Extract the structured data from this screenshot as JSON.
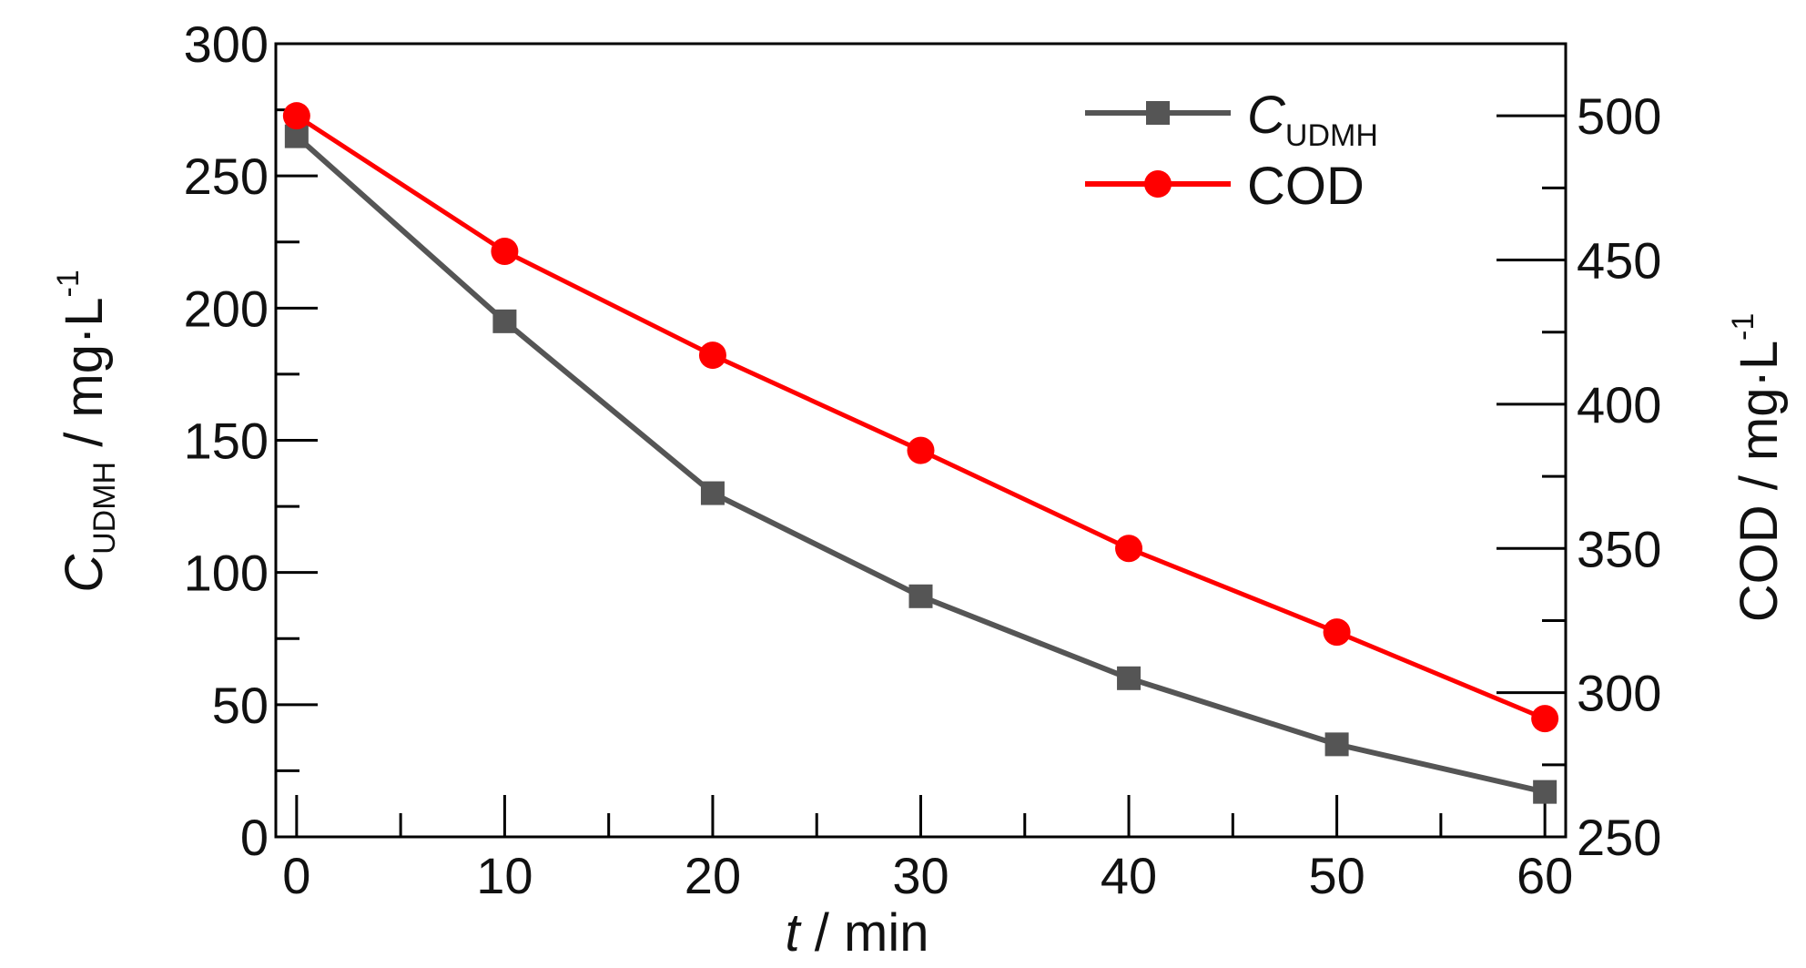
{
  "chart_data": {
    "type": "line",
    "x": [
      0,
      10,
      20,
      30,
      40,
      50,
      60
    ],
    "xlim": [
      -1,
      61
    ],
    "x_ticks": [
      0,
      10,
      20,
      30,
      40,
      50,
      60
    ],
    "x_tick_labels": [
      "0",
      "10",
      "20",
      "30",
      "40",
      "50",
      "60"
    ],
    "xlabel": {
      "var": "t",
      "rest": " / min"
    },
    "y_left": {
      "lim": [
        0,
        300
      ],
      "ticks": [
        0,
        50,
        100,
        150,
        200,
        250,
        300
      ],
      "tick_labels": [
        "0",
        "50",
        "100",
        "150",
        "200",
        "250",
        "300"
      ],
      "label": {
        "var": "C",
        "sub": "UDMH",
        "rest": " / mg·L",
        "sup": "-1"
      }
    },
    "y_right": {
      "lim": [
        250,
        525
      ],
      "ticks": [
        250,
        300,
        350,
        400,
        450,
        500
      ],
      "tick_labels": [
        "250",
        "300",
        "350",
        "400",
        "450",
        "500"
      ],
      "label": {
        "rest": "COD / mg·L",
        "sup": "-1"
      }
    },
    "series": [
      {
        "name": "C",
        "name_sub": "UDMH",
        "axis": "left",
        "marker": "square",
        "color": "#555555",
        "values": [
          265,
          195,
          130,
          91,
          60,
          35,
          17
        ]
      },
      {
        "name": "COD",
        "axis": "right",
        "marker": "circle",
        "color": "#ff0000",
        "values": [
          500,
          453,
          417,
          384,
          350,
          321,
          291
        ]
      }
    ],
    "grid": false,
    "legend": "top-right"
  }
}
